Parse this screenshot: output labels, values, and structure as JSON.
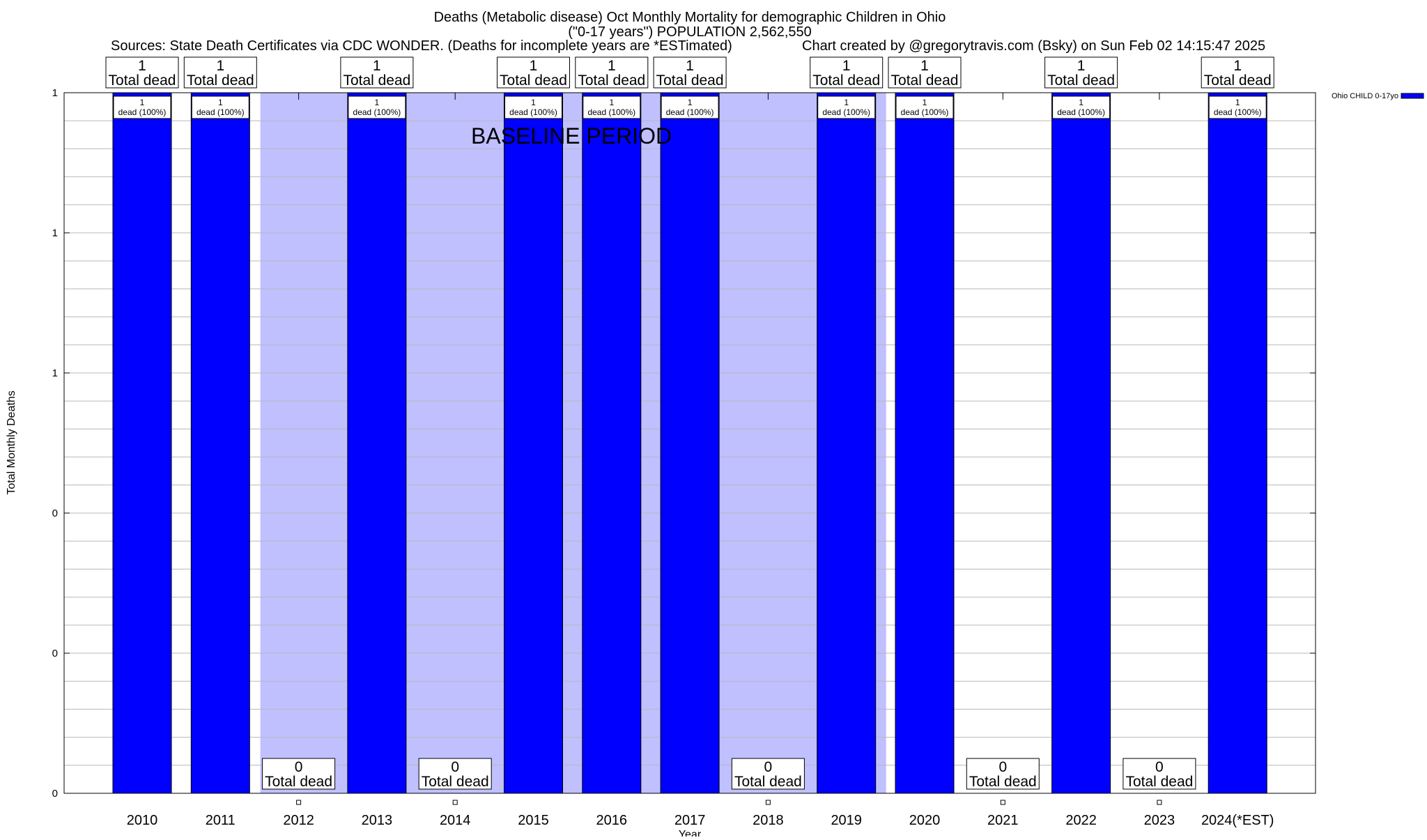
{
  "chart_data": {
    "type": "bar",
    "title_lines": [
      "Deaths (Metabolic disease) Oct Monthly Mortality for demographic Children in Ohio",
      "(\"0-17 years\") POPULATION 2,562,550"
    ],
    "sources": "Sources: State Death Certificates via CDC WONDER. (Deaths for incomplete years are *ESTimated)",
    "credit": "Chart created by @gregorytravis.com (Bsky) on Sun Feb 02 14:15:47 2025",
    "xlabel": "Year",
    "ylabel": "Total Monthly Deaths",
    "categories": [
      "2010",
      "2011",
      "2012",
      "2013",
      "2014",
      "2015",
      "2016",
      "2017",
      "2018",
      "2019",
      "2020",
      "2021",
      "2022",
      "2023",
      "2024(*EST)"
    ],
    "series": [
      {
        "name": "Ohio CHILD 0-17yo",
        "values": [
          1,
          1,
          0,
          1,
          0,
          1,
          1,
          1,
          0,
          1,
          1,
          0,
          1,
          0,
          1
        ],
        "color": "#0000ff"
      }
    ],
    "top_labels": [
      "1",
      "1",
      "0",
      "1",
      "0",
      "1",
      "1",
      "1",
      "0",
      "1",
      "1",
      "0",
      "1",
      "0",
      "1"
    ],
    "total_label": "Total dead",
    "inner_count": "1",
    "inner_label": "dead (100%)",
    "ylim": [
      0,
      1
    ],
    "yticks": [
      0,
      0.2,
      0.4,
      0.6,
      0.8,
      1
    ],
    "ytick_labels": [
      "0",
      "0",
      "0",
      "1",
      "1",
      "1"
    ],
    "grid": true,
    "minor_gridlines": 25,
    "legend_position": "top-right outside",
    "baseline_period": {
      "label": "BASELINE PERIOD",
      "from": "2012",
      "to": "2019",
      "color": "#c0c0ff"
    }
  }
}
